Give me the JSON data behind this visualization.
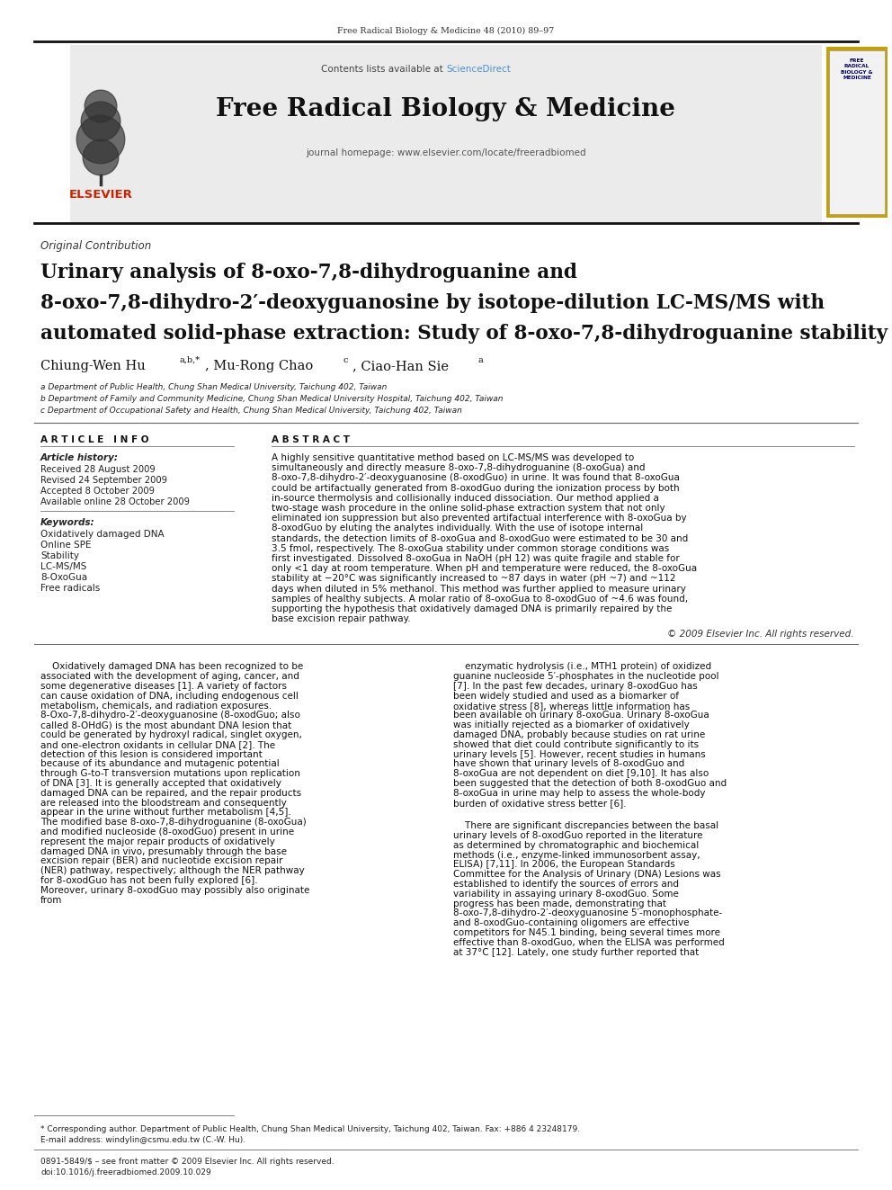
{
  "page_width": 9.92,
  "page_height": 13.23,
  "background_color": "#ffffff",
  "header_journal_ref": "Free Radical Biology & Medicine 48 (2010) 89–97",
  "sciencedirect_color": "#4a90d9",
  "journal_title": "Free Radical Biology & Medicine",
  "journal_homepage": "journal homepage: www.elsevier.com/locate/freeradbiomed",
  "section_label": "Original Contribution",
  "article_title_line1": "Urinary analysis of 8-oxo-7,8-dihydroguanine and",
  "article_title_line2": "8-oxo-7,8-dihydro-2′-deoxyguanosine by isotope-dilution LC-MS/MS with",
  "article_title_line3": "automated solid-phase extraction: Study of 8-oxo-7,8-dihydroguanine stability",
  "author_main": "Chiung-Wen Hu",
  "author_sup1": "a,b,*",
  "author_mid": ", Mu-Rong Chao",
  "author_sup2": "c",
  "author_end": ", Ciao-Han Sie",
  "author_sup3": "a",
  "affil_a": "a Department of Public Health, Chung Shan Medical University, Taichung 402, Taiwan",
  "affil_b": "b Department of Family and Community Medicine, Chung Shan Medical University Hospital, Taichung 402, Taiwan",
  "affil_c": "c Department of Occupational Safety and Health, Chung Shan Medical University, Taichung 402, Taiwan",
  "article_info_header": "A R T I C L E   I N F O",
  "abstract_header": "A B S T R A C T",
  "article_history_label": "Article history:",
  "received": "Received 28 August 2009",
  "revised": "Revised 24 September 2009",
  "accepted": "Accepted 8 October 2009",
  "available": "Available online 28 October 2009",
  "keywords_label": "Keywords:",
  "keyword1": "Oxidatively damaged DNA",
  "keyword2": "Online SPE",
  "keyword3": "Stability",
  "keyword4": "LC-MS/MS",
  "keyword5": "8-OxoGua",
  "keyword6": "Free radicals",
  "abstract_text": "A highly sensitive quantitative method based on LC-MS/MS was developed to simultaneously and directly measure 8-oxo-7,8-dihydroguanine (8-oxoGua) and 8-oxo-7,8-dihydro-2′-deoxyguanosine (8-oxodGuo) in urine. It was found that 8-oxoGua could be artifactually generated from 8-oxodGuo during the ionization process by both in-source thermolysis and collisionally induced dissociation. Our method applied a two-stage wash procedure in the online solid-phase extraction system that not only eliminated ion suppression but also prevented artifactual interference with 8-oxoGua by 8-oxodGuo by eluting the analytes individually. With the use of isotope internal standards, the detection limits of 8-oxoGua and 8-oxodGuo were estimated to be 30 and 3.5 fmol, respectively. The 8-oxoGua stability under common storage conditions was first investigated. Dissolved 8-oxoGua in NaOH (pH 12) was quite fragile and stable for only <1 day at room temperature. When pH and temperature were reduced, the 8-oxoGua stability at −20°C was significantly increased to ~87 days in water (pH ~7) and ~112 days when diluted in 5% methanol. This method was further applied to measure urinary samples of healthy subjects. A molar ratio of 8-oxoGua to 8-oxodGuo of ~4.6 was found, supporting the hypothesis that oxidatively damaged DNA is primarily repaired by the base excision repair pathway.",
  "copyright_text": "© 2009 Elsevier Inc. All rights reserved.",
  "body_col1_para1": "Oxidatively damaged DNA has been recognized to be associated with the development of aging, cancer, and some degenerative diseases [1]. A variety of factors can cause oxidation of DNA, including endogenous cell metabolism, chemicals, and radiation exposures. 8-Oxo-7,8-dihydro-2′-deoxyguanosine (8-oxodGuo; also called 8-OHdG) is the most abundant DNA lesion that could be generated by hydroxyl radical, singlet oxygen, and one-electron oxidants in cellular DNA [2]. The detection of this lesion is considered important because of its abundance and mutagenic potential through G-to-T transversion mutations upon replication of DNA [3]. It is generally accepted that oxidatively damaged DNA can be repaired, and the repair products are released into the bloodstream and consequently appear in the urine without further metabolism [4,5]. The modified base 8-oxo-7,8-dihydroguanine (8-oxoGua) and modified nucleoside (8-oxodGuo) present in urine represent the major repair products of oxidatively damaged DNA in vivo, presumably through the base excision repair (BER) and nucleotide excision repair (NER) pathway, respectively; although the NER pathway for 8-oxodGuo has not been fully explored [6]. Moreover, urinary 8-oxodGuo may possibly also originate from",
  "body_col2_para1": "enzymatic hydrolysis (i.e., MTH1 protein) of oxidized guanine nucleoside 5′-phosphates in the nucleotide pool [7]. In the past few decades, urinary 8-oxodGuo has been widely studied and used as a biomarker of oxidative stress [8], whereas little information has been available on urinary 8-oxoGua. Urinary 8-oxoGua was initially rejected as a biomarker of oxidatively damaged DNA, probably because studies on rat urine showed that diet could contribute significantly to its urinary levels [5]. However, recent studies in humans have shown that urinary levels of 8-oxodGuo and 8-oxoGua are not dependent on diet [9,10]. It has also been suggested that the detection of both 8-oxodGuo and 8-oxoGua in urine may help to assess the whole-body burden of oxidative stress better [6].",
  "body_col2_para2": "There are significant discrepancies between the basal urinary levels of 8-oxodGuo reported in the literature as determined by chromatographic and biochemical methods (i.e., enzyme-linked immunosorbent assay, ELISA) [7,11]. In 2006, the European Standards Committee for the Analysis of Urinary (DNA) Lesions was established to identify the sources of errors and variability in assaying urinary 8-oxodGuo. Some progress has been made, demonstrating that 8-oxo-7,8-dihydro-2′-deoxyguanosine 5′-monophosphate- and 8-oxodGuo-containing oligomers are effective competitors for N45.1 binding, being several times more effective than 8-oxodGuo, when the ELISA was performed at 37°C [12]. Lately, one study further reported that",
  "footnote_star": "* Corresponding author. Department of Public Health, Chung Shan Medical University, Taichung 402, Taiwan. Fax: +886 4 23248179.",
  "footnote_email": "E-mail address: windylin@csmu.edu.tw (C.-W. Hu).",
  "footnote_issn": "0891-5849/$ – see front matter © 2009 Elsevier Inc. All rights reserved.",
  "footnote_doi": "doi:10.1016/j.freeradbiomed.2009.10.029"
}
